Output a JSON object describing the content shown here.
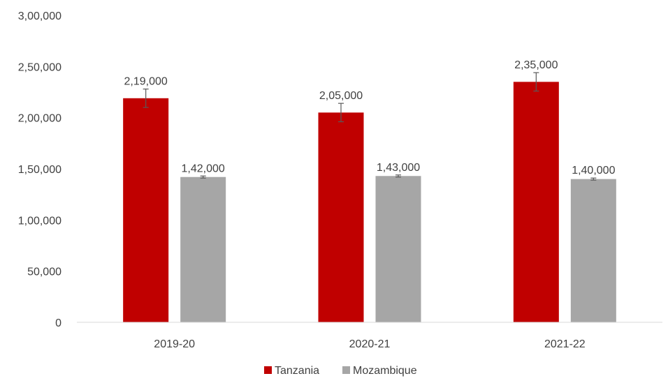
{
  "chart_data": {
    "type": "bar",
    "categories": [
      "2019-20",
      "2020-21",
      "2021-22"
    ],
    "series": [
      {
        "name": "Tanzania",
        "color": "#c00000",
        "values": [
          219000,
          205000,
          235000
        ],
        "error": [
          9000,
          9000,
          9000
        ],
        "labels": [
          "2,19,000",
          "2,05,000",
          "2,35,000"
        ]
      },
      {
        "name": "Mozambique",
        "color": "#a6a6a6",
        "values": [
          142000,
          143000,
          140000
        ],
        "error": [
          1000,
          1000,
          1000
        ],
        "labels": [
          "1,42,000",
          "1,43,000",
          "1,40,000"
        ]
      }
    ],
    "ylim": [
      0,
      300000
    ],
    "yticks": [
      0,
      50000,
      100000,
      150000,
      200000,
      250000,
      300000
    ],
    "ytick_labels": [
      "0",
      "50,000",
      "1,00,000",
      "1,50,000",
      "2,00,000",
      "2,50,000",
      "3,00,000"
    ],
    "grid": false,
    "legend_position": "bottom"
  }
}
